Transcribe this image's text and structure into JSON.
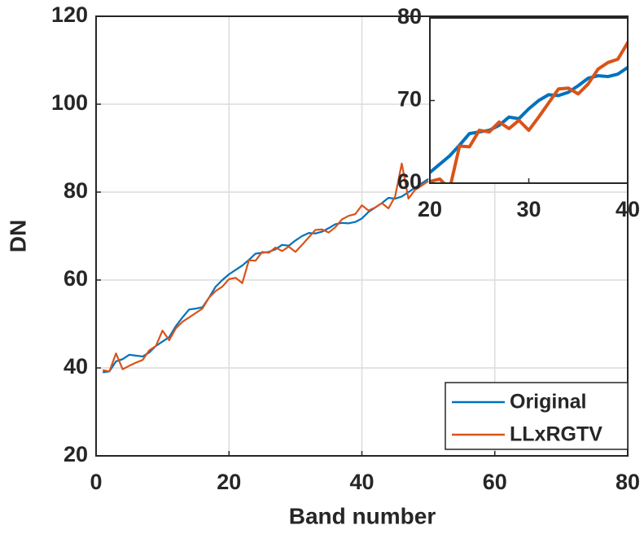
{
  "chart_data": [
    {
      "type": "line",
      "xlabel": "Band number",
      "ylabel": "DN",
      "x": [
        1,
        2,
        3,
        4,
        5,
        6,
        7,
        8,
        9,
        10,
        11,
        12,
        13,
        14,
        15,
        16,
        17,
        18,
        19,
        20,
        21,
        22,
        23,
        24,
        25,
        26,
        27,
        28,
        29,
        30,
        31,
        32,
        33,
        34,
        35,
        36,
        37,
        38,
        39,
        40,
        41,
        42,
        43,
        44,
        45,
        46,
        47,
        48,
        49,
        50
      ],
      "series": [
        {
          "name": "Original",
          "color": "#0072BD",
          "values": [
            39,
            39.2,
            41.5,
            42,
            43,
            42.8,
            42.6,
            43.5,
            45,
            46,
            47,
            49.5,
            51.5,
            53.3,
            53.5,
            53.8,
            56,
            58.5,
            60,
            61.3,
            62.3,
            63.3,
            64.6,
            66,
            66.2,
            66.4,
            67,
            68,
            67.8,
            69,
            70,
            70.7,
            70.6,
            71,
            71.8,
            72.7,
            73,
            72.9,
            73.2,
            74,
            75.5,
            76.5,
            77.5,
            78.7,
            78.5,
            79,
            80,
            81,
            82,
            83
          ]
        },
        {
          "name": "LLxRGTV",
          "color": "#D95319",
          "values": [
            39.5,
            39.2,
            43.3,
            39.7,
            40.5,
            41.2,
            41.8,
            44,
            45,
            48.5,
            46.3,
            49,
            50.5,
            51.5,
            52.5,
            53.5,
            56,
            57.5,
            58.5,
            60.2,
            60.5,
            59.3,
            64.5,
            64.4,
            66.4,
            66.2,
            67.4,
            66.6,
            67.6,
            66.4,
            68,
            69.7,
            71.4,
            71.5,
            70.8,
            72,
            73.8,
            74.6,
            75,
            77,
            75.8,
            76.5,
            77.5,
            76.3,
            79,
            86.5,
            78.5,
            80.5,
            81.5,
            82.5
          ]
        }
      ],
      "xlim": [
        0,
        80
      ],
      "ylim": [
        20,
        120
      ],
      "xticks": [
        0,
        20,
        40,
        60,
        80
      ],
      "yticks": [
        20,
        40,
        60,
        80,
        100,
        120
      ],
      "grid": true,
      "legend": "lower right"
    },
    {
      "type": "line",
      "xlim": [
        20,
        40
      ],
      "ylim": [
        60,
        80
      ],
      "xticks": [
        20,
        30,
        40
      ],
      "yticks": [
        60,
        70,
        80
      ],
      "grid": false
    }
  ]
}
